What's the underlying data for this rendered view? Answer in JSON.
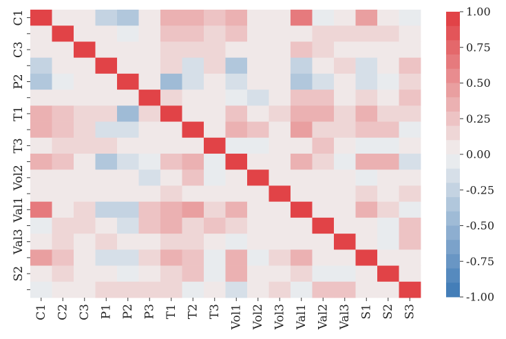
{
  "chart_data": {
    "type": "heatmap",
    "title": "",
    "xlabel": "",
    "ylabel": "",
    "categories": [
      "C1",
      "C2",
      "C3",
      "P1",
      "P2",
      "P3",
      "T1",
      "T2",
      "T3",
      "Vol1",
      "Vol2",
      "Vol3",
      "Val1",
      "Val2",
      "Val3",
      "S1",
      "S2",
      "S3"
    ],
    "x_tick_labels": [
      "C1",
      "C2",
      "C3",
      "P1",
      "P2",
      "P3",
      "T1",
      "T2",
      "T3",
      "Vol1",
      "Vol2",
      "Vol3",
      "Val1",
      "Val2",
      "Val3",
      "S1",
      "S2",
      "S3"
    ],
    "y_tick_labels": [
      "C1",
      "",
      "C3",
      "",
      "P2",
      "",
      "T1",
      "",
      "T3",
      "",
      "Vol2",
      "",
      "Val1",
      "",
      "Val3",
      "",
      "S2",
      ""
    ],
    "matrix": [
      [
        1.0,
        0.0,
        0.0,
        -0.25,
        -0.35,
        0.05,
        0.3,
        0.3,
        0.2,
        0.3,
        0.0,
        0.05,
        0.65,
        -0.05,
        0.0,
        0.45,
        0.0,
        -0.05
      ],
      [
        0.0,
        1.0,
        0.0,
        0.0,
        -0.1,
        0.0,
        0.25,
        0.2,
        0.1,
        0.2,
        0.0,
        0.0,
        0.0,
        0.15,
        0.1,
        0.15,
        0.15,
        0.0
      ],
      [
        0.0,
        0.0,
        1.0,
        0.0,
        0.0,
        0.0,
        0.1,
        0.1,
        0.1,
        0.0,
        0.0,
        0.0,
        0.2,
        0.1,
        0.0,
        0.0,
        0.0,
        0.0
      ],
      [
        -0.25,
        0.0,
        0.0,
        1.0,
        0.0,
        0.0,
        0.1,
        -0.2,
        0.1,
        -0.4,
        0.0,
        0.0,
        -0.3,
        0.0,
        0.1,
        -0.15,
        0.0,
        0.2
      ],
      [
        -0.35,
        -0.1,
        0.0,
        0.0,
        1.0,
        0.0,
        -0.45,
        -0.2,
        0.0,
        -0.2,
        0.0,
        0.0,
        -0.4,
        -0.15,
        0.0,
        -0.2,
        -0.1,
        0.1
      ],
      [
        0.05,
        0.0,
        0.0,
        0.0,
        0.0,
        1.0,
        0.15,
        0.05,
        0.05,
        -0.1,
        -0.15,
        0.0,
        0.25,
        0.25,
        0.05,
        0.1,
        0.0,
        0.25
      ],
      [
        0.3,
        0.25,
        0.1,
        0.1,
        -0.45,
        0.15,
        1.0,
        0.0,
        0.0,
        0.2,
        0.0,
        0.1,
        0.35,
        0.35,
        0.1,
        0.35,
        0.1,
        0.1
      ],
      [
        0.3,
        0.2,
        0.1,
        -0.2,
        -0.2,
        0.05,
        0.0,
        1.0,
        0.0,
        0.3,
        0.2,
        0.0,
        0.4,
        0.1,
        0.1,
        0.2,
        0.2,
        -0.05
      ],
      [
        0.0,
        0.1,
        0.1,
        0.1,
        0.0,
        0.05,
        0.0,
        0.0,
        1.0,
        -0.05,
        -0.05,
        0.0,
        0.05,
        0.2,
        0.0,
        -0.1,
        -0.05,
        0.0
      ],
      [
        0.3,
        0.2,
        0.0,
        -0.4,
        -0.2,
        -0.1,
        0.2,
        0.3,
        -0.05,
        1.0,
        0.0,
        0.0,
        0.3,
        0.1,
        -0.05,
        0.3,
        0.3,
        -0.2
      ],
      [
        0.0,
        0.0,
        0.0,
        0.0,
        0.0,
        -0.15,
        0.0,
        0.2,
        -0.05,
        0.0,
        1.0,
        0.0,
        0.0,
        0.0,
        0.0,
        -0.05,
        0.0,
        0.0
      ],
      [
        0.05,
        0.0,
        0.0,
        0.0,
        0.0,
        0.0,
        0.1,
        0.0,
        0.0,
        0.0,
        0.0,
        1.0,
        0.0,
        0.0,
        0.0,
        0.1,
        0.0,
        0.1
      ],
      [
        0.65,
        0.0,
        0.15,
        -0.25,
        -0.3,
        0.25,
        0.35,
        0.4,
        0.1,
        0.3,
        0.0,
        0.05,
        1.0,
        0.0,
        0.0,
        0.3,
        0.1,
        -0.05
      ],
      [
        -0.05,
        0.15,
        0.1,
        0.0,
        -0.15,
        0.2,
        0.35,
        0.15,
        0.2,
        0.1,
        0.0,
        0.0,
        0.0,
        1.0,
        0.0,
        0.05,
        -0.05,
        0.2
      ],
      [
        0.0,
        0.1,
        0.0,
        0.1,
        0.0,
        0.05,
        0.1,
        0.1,
        0.0,
        -0.05,
        0.0,
        0.0,
        0.0,
        0.0,
        1.0,
        0.05,
        -0.05,
        0.2
      ],
      [
        0.4,
        0.2,
        0.0,
        -0.15,
        -0.2,
        0.1,
        0.35,
        0.2,
        -0.1,
        0.3,
        -0.05,
        0.1,
        0.3,
        0.05,
        0.05,
        1.0,
        0.0,
        0.0
      ],
      [
        0.0,
        0.15,
        0.0,
        0.0,
        -0.1,
        0.0,
        0.1,
        0.2,
        -0.05,
        0.3,
        0.0,
        0.0,
        0.1,
        -0.05,
        -0.05,
        0.0,
        1.0,
        0.0
      ],
      [
        -0.05,
        0.0,
        0.0,
        0.15,
        0.1,
        0.15,
        0.1,
        -0.05,
        0.0,
        -0.2,
        0.0,
        0.1,
        -0.05,
        0.2,
        0.2,
        0.0,
        0.0,
        1.0
      ]
    ],
    "vmin": -1.0,
    "vmax": 1.0,
    "colorbar": {
      "ticks": [
        1.0,
        0.75,
        0.5,
        0.25,
        0.0,
        -0.25,
        -0.5,
        -0.75,
        -1.0
      ],
      "tick_labels": [
        "1.00",
        "0.75",
        "0.50",
        "0.25",
        "0.00",
        "-0.25",
        "-0.50",
        "-0.75",
        "-1.00"
      ],
      "steps": 20
    },
    "colors": {
      "low": "#3b78b5",
      "mid": "#f1f1f1",
      "high": "#e03a3e"
    },
    "grid": false,
    "legend": "colorbar-right"
  }
}
